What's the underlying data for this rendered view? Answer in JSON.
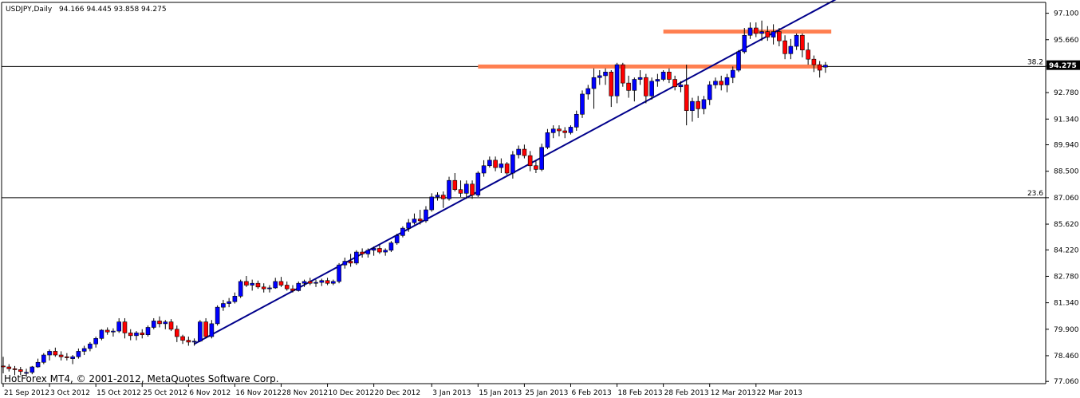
{
  "header": {
    "symbol_label": "USDJPY,Daily",
    "ohlc_label": "94.166 94.445 93.858 94.275"
  },
  "footer": {
    "copyright": "HotForex MT4, © 2001-2012, MetaQuotes Software Corp."
  },
  "colors": {
    "bull_fill": "#0000ff",
    "bear_fill": "#ff0000",
    "wick": "#000000",
    "trendline": "#00008b",
    "resistance_band": "#ff7f50",
    "background": "#ffffff"
  },
  "chart_data": {
    "type": "candlestick",
    "title": "USDJPY,Daily",
    "ylim": [
      77.06,
      97.1
    ],
    "y_ticks": [
      "97.100",
      "95.660",
      "94.220",
      "92.780",
      "91.340",
      "89.940",
      "88.500",
      "87.060",
      "85.620",
      "84.220",
      "82.780",
      "81.340",
      "79.900",
      "78.460",
      "77.060"
    ],
    "x_ticks": [
      "21 Sep 2012",
      "3 Oct 2012",
      "15 Oct 2012",
      "25 Oct 2012",
      "6 Nov 2012",
      "16 Nov 2012",
      "28 Nov 2012",
      "10 Dec 2012",
      "20 Dec 2012",
      "3 Jan 2013",
      "15 Jan 2013",
      "25 Jan 2013",
      "6 Feb 2013",
      "18 Feb 2013",
      "28 Feb 2013",
      "12 Mar 2013",
      "22 Mar 2013"
    ],
    "current_price": "94.275",
    "fib_levels": [
      {
        "label": "38.2",
        "value": 94.2
      },
      {
        "label": "23.6",
        "value": 87.06
      }
    ],
    "trendline": {
      "from": {
        "x": "7 Nov 2012",
        "y": 79.1
      },
      "to": {
        "x": "16 Apr 2013",
        "y": 98.4
      }
    },
    "zones": [
      {
        "from": "28 Feb 2013",
        "to": "10 Apr 2013",
        "y": 96.1
      },
      {
        "from": "15 Jan 2013",
        "to": "8 Apr 2013",
        "y": 94.2
      }
    ],
    "ohlc_columns": [
      "open",
      "high",
      "low",
      "close"
    ],
    "candles": [
      [
        77.9,
        78.4,
        77.5,
        77.85
      ],
      [
        77.85,
        78.0,
        77.6,
        77.75
      ],
      [
        77.75,
        77.9,
        77.4,
        77.7
      ],
      [
        77.7,
        77.85,
        77.4,
        77.6
      ],
      [
        77.5,
        77.75,
        77.3,
        77.55
      ],
      [
        77.55,
        77.9,
        77.45,
        77.85
      ],
      [
        77.85,
        78.3,
        77.8,
        78.1
      ],
      [
        78.1,
        78.6,
        78.0,
        78.5
      ],
      [
        78.5,
        78.8,
        78.2,
        78.7
      ],
      [
        78.7,
        78.9,
        78.4,
        78.5
      ],
      [
        78.5,
        78.7,
        78.2,
        78.4
      ],
      [
        78.4,
        78.6,
        78.2,
        78.35
      ],
      [
        78.3,
        78.5,
        78.0,
        78.4
      ],
      [
        78.4,
        78.85,
        78.3,
        78.7
      ],
      [
        78.7,
        79.0,
        78.5,
        78.85
      ],
      [
        78.85,
        79.2,
        78.7,
        79.1
      ],
      [
        79.1,
        79.5,
        78.9,
        79.4
      ],
      [
        79.4,
        79.9,
        79.3,
        79.85
      ],
      [
        79.85,
        80.0,
        79.6,
        79.75
      ],
      [
        79.75,
        79.95,
        79.5,
        79.8
      ],
      [
        79.8,
        80.5,
        79.7,
        80.3
      ],
      [
        80.3,
        80.5,
        79.4,
        79.7
      ],
      [
        79.7,
        79.9,
        79.3,
        79.55
      ],
      [
        79.55,
        79.8,
        79.3,
        79.7
      ],
      [
        79.7,
        79.9,
        79.4,
        79.6
      ],
      [
        79.6,
        80.1,
        79.5,
        80.0
      ],
      [
        80.0,
        80.5,
        79.9,
        80.35
      ],
      [
        80.35,
        80.6,
        80.0,
        80.2
      ],
      [
        80.2,
        80.4,
        79.9,
        80.3
      ],
      [
        80.3,
        80.45,
        79.8,
        79.9
      ],
      [
        79.9,
        80.1,
        79.2,
        79.5
      ],
      [
        79.5,
        79.6,
        79.1,
        79.3
      ],
      [
        79.3,
        79.5,
        79.0,
        79.2
      ],
      [
        79.2,
        79.4,
        79.0,
        79.25
      ],
      [
        79.25,
        80.4,
        79.2,
        80.3
      ],
      [
        80.3,
        80.5,
        79.4,
        79.5
      ],
      [
        79.5,
        80.4,
        79.4,
        80.2
      ],
      [
        80.2,
        81.2,
        80.1,
        81.1
      ],
      [
        81.1,
        81.5,
        80.9,
        81.3
      ],
      [
        81.3,
        81.6,
        81.1,
        81.4
      ],
      [
        81.4,
        81.9,
        81.3,
        81.7
      ],
      [
        81.7,
        82.6,
        81.6,
        82.5
      ],
      [
        82.5,
        82.8,
        82.2,
        82.3
      ],
      [
        82.3,
        82.6,
        82.0,
        82.4
      ],
      [
        82.4,
        82.55,
        82.1,
        82.2
      ],
      [
        82.2,
        82.4,
        81.9,
        82.1
      ],
      [
        82.1,
        82.3,
        81.9,
        82.15
      ],
      [
        82.15,
        82.7,
        82.1,
        82.5
      ],
      [
        82.5,
        82.75,
        82.2,
        82.3
      ],
      [
        82.3,
        82.5,
        82.0,
        82.1
      ],
      [
        82.1,
        82.3,
        81.9,
        82.0
      ],
      [
        82.0,
        82.5,
        81.95,
        82.4
      ],
      [
        82.4,
        82.6,
        82.2,
        82.5
      ],
      [
        82.5,
        82.7,
        82.3,
        82.4
      ],
      [
        82.4,
        82.6,
        82.2,
        82.45
      ],
      [
        82.45,
        82.65,
        82.25,
        82.55
      ],
      [
        82.55,
        82.7,
        82.3,
        82.4
      ],
      [
        82.4,
        82.6,
        82.3,
        82.5
      ],
      [
        82.5,
        83.5,
        82.4,
        83.4
      ],
      [
        83.4,
        83.8,
        83.2,
        83.6
      ],
      [
        83.6,
        84.0,
        83.3,
        83.5
      ],
      [
        83.5,
        84.2,
        83.4,
        84.1
      ],
      [
        84.1,
        84.3,
        83.8,
        84.0
      ],
      [
        84.0,
        84.3,
        83.8,
        84.2
      ],
      [
        84.2,
        84.4,
        83.9,
        84.3
      ],
      [
        84.3,
        84.5,
        84.0,
        84.1
      ],
      [
        84.1,
        84.3,
        83.9,
        84.2
      ],
      [
        84.2,
        84.7,
        84.1,
        84.6
      ],
      [
        84.6,
        85.1,
        84.5,
        85.0
      ],
      [
        85.0,
        85.5,
        84.9,
        85.4
      ],
      [
        85.4,
        85.9,
        85.2,
        85.7
      ],
      [
        85.7,
        86.2,
        85.6,
        85.9
      ],
      [
        85.9,
        86.4,
        85.6,
        85.8
      ],
      [
        85.8,
        86.6,
        85.7,
        86.4
      ],
      [
        86.4,
        87.3,
        86.3,
        87.1
      ],
      [
        87.1,
        87.35,
        86.9,
        87.2
      ],
      [
        87.2,
        87.4,
        86.5,
        87.0
      ],
      [
        87.0,
        88.2,
        86.9,
        88.0
      ],
      [
        88.0,
        88.4,
        87.4,
        87.5
      ],
      [
        87.5,
        88.0,
        87.1,
        87.3
      ],
      [
        87.3,
        88.0,
        87.0,
        87.8
      ],
      [
        87.8,
        88.0,
        87.0,
        87.2
      ],
      [
        87.2,
        88.5,
        87.1,
        88.4
      ],
      [
        88.4,
        89.1,
        88.2,
        88.8
      ],
      [
        88.8,
        89.3,
        88.7,
        89.1
      ],
      [
        89.1,
        89.3,
        88.5,
        88.7
      ],
      [
        88.7,
        89.2,
        88.4,
        88.9
      ],
      [
        88.9,
        89.0,
        88.3,
        88.4
      ],
      [
        88.4,
        89.6,
        88.1,
        89.4
      ],
      [
        89.4,
        89.9,
        89.2,
        89.7
      ],
      [
        89.7,
        89.95,
        89.2,
        89.35
      ],
      [
        89.35,
        89.6,
        88.5,
        88.8
      ],
      [
        88.8,
        89.1,
        88.4,
        88.6
      ],
      [
        88.6,
        90.0,
        88.5,
        89.8
      ],
      [
        89.8,
        90.8,
        89.7,
        90.6
      ],
      [
        90.6,
        91.0,
        90.3,
        90.8
      ],
      [
        90.8,
        91.0,
        90.4,
        90.7
      ],
      [
        90.7,
        90.9,
        90.3,
        90.6
      ],
      [
        90.6,
        91.0,
        90.5,
        90.9
      ],
      [
        90.9,
        91.8,
        90.7,
        91.6
      ],
      [
        91.6,
        92.9,
        91.4,
        92.7
      ],
      [
        92.7,
        93.2,
        92.4,
        93.0
      ],
      [
        93.0,
        94.1,
        91.9,
        93.6
      ],
      [
        93.6,
        94.0,
        93.2,
        93.7
      ],
      [
        93.7,
        94.1,
        93.2,
        93.9
      ],
      [
        93.9,
        94.0,
        92.0,
        92.6
      ],
      [
        92.6,
        94.4,
        92.2,
        94.3
      ],
      [
        94.3,
        94.4,
        93.1,
        93.3
      ],
      [
        93.3,
        93.7,
        92.5,
        92.9
      ],
      [
        92.9,
        93.6,
        92.3,
        93.5
      ],
      [
        93.5,
        94.0,
        93.2,
        93.6
      ],
      [
        93.6,
        93.8,
        92.2,
        92.6
      ],
      [
        92.6,
        93.6,
        92.4,
        93.4
      ],
      [
        93.4,
        93.8,
        93.1,
        93.5
      ],
      [
        93.5,
        94.0,
        93.4,
        93.9
      ],
      [
        93.9,
        94.1,
        93.3,
        93.5
      ],
      [
        93.5,
        93.7,
        92.9,
        93.1
      ],
      [
        93.1,
        93.4,
        92.8,
        93.2
      ],
      [
        93.2,
        94.3,
        91.0,
        91.8
      ],
      [
        91.8,
        92.5,
        91.2,
        92.3
      ],
      [
        92.3,
        92.6,
        91.4,
        91.9
      ],
      [
        91.9,
        92.6,
        91.6,
        92.4
      ],
      [
        92.4,
        93.4,
        92.1,
        93.2
      ],
      [
        93.2,
        93.6,
        93.0,
        93.4
      ],
      [
        93.4,
        93.7,
        92.9,
        93.2
      ],
      [
        93.2,
        93.8,
        92.8,
        93.6
      ],
      [
        93.6,
        94.2,
        93.3,
        94.0
      ],
      [
        94.0,
        95.1,
        93.9,
        95.0
      ],
      [
        95.0,
        96.3,
        94.9,
        95.9
      ],
      [
        95.9,
        96.6,
        95.7,
        96.3
      ],
      [
        96.3,
        96.6,
        95.8,
        96.0
      ],
      [
        96.0,
        96.7,
        95.6,
        96.1
      ],
      [
        96.1,
        96.4,
        95.6,
        95.8
      ],
      [
        95.8,
        96.5,
        95.4,
        96.1
      ],
      [
        96.1,
        96.3,
        95.3,
        95.6
      ],
      [
        95.6,
        95.9,
        94.6,
        94.9
      ],
      [
        94.9,
        95.7,
        94.6,
        95.3
      ],
      [
        95.3,
        96.0,
        95.1,
        95.9
      ],
      [
        95.9,
        96.0,
        94.7,
        95.1
      ],
      [
        95.1,
        95.5,
        94.3,
        94.6
      ],
      [
        94.6,
        94.8,
        93.9,
        94.3
      ],
      [
        94.3,
        94.5,
        93.6,
        94.0
      ],
      [
        94.166,
        94.445,
        93.858,
        94.275
      ]
    ]
  }
}
